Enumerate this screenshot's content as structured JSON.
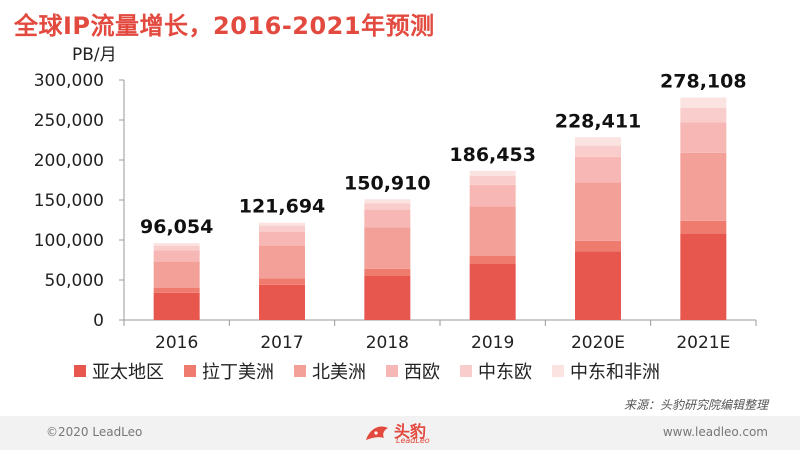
{
  "title": "全球IP流量增长，2016-2021年预测",
  "chart_data": {
    "type": "bar",
    "stacked": true,
    "ylabel": "PB/月",
    "ylim": [
      0,
      300000
    ],
    "yticks": [
      "0",
      "50,000",
      "100,000",
      "150,000",
      "200,000",
      "250,000",
      "300,000"
    ],
    "yticks_values": [
      0,
      50000,
      100000,
      150000,
      200000,
      250000,
      300000
    ],
    "categories": [
      "2016",
      "2017",
      "2018",
      "2019",
      "2020E",
      "2021E"
    ],
    "totals": [
      96054,
      121694,
      150910,
      186453,
      228411,
      278108
    ],
    "total_labels": [
      "96,054",
      "121,694",
      "150,910",
      "186,453",
      "228,411",
      "278,108"
    ],
    "series": [
      {
        "name": "亚太地区",
        "color": "#e8574e",
        "values": [
          34000,
          44000,
          55000,
          70000,
          86000,
          108000
        ]
      },
      {
        "name": "拉丁美洲",
        "color": "#ee7b6d",
        "values": [
          6000,
          8000,
          9000,
          10000,
          13000,
          16000
        ]
      },
      {
        "name": "北美洲",
        "color": "#f3a099",
        "values": [
          33000,
          41000,
          52000,
          62000,
          73000,
          85000
        ]
      },
      {
        "name": "西欧",
        "color": "#f7b8b5",
        "values": [
          14000,
          17000,
          22000,
          27000,
          32000,
          38000
        ]
      },
      {
        "name": "中东欧",
        "color": "#f9cdcb",
        "values": [
          6000,
          8000,
          8000,
          11000,
          14000,
          18000
        ]
      },
      {
        "name": "中东和非洲",
        "color": "#fbe3e2",
        "values": [
          3054,
          3694,
          4910,
          6453,
          10411,
          13108
        ]
      }
    ],
    "grid": false,
    "legend_position": "bottom"
  },
  "source": "来源：头豹研究院编辑整理",
  "footer": {
    "copyright": "©2020 LeadLeo",
    "website": "www.leadleo.com",
    "brand": "头豹",
    "brand_sub": "LeadLeo"
  }
}
